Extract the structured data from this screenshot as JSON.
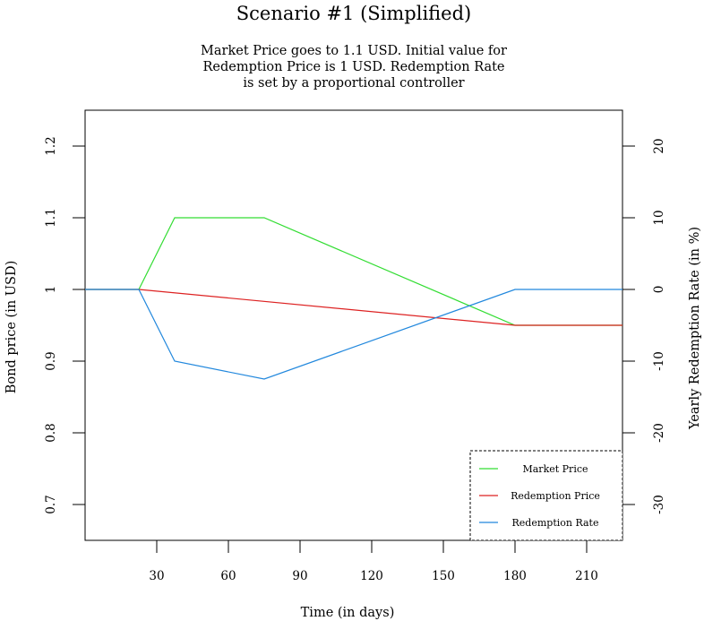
{
  "chart_data": {
    "type": "line",
    "title": "Scenario #1 (Simplified)",
    "subtitle": [
      "Market Price goes to 1.1 USD. Initial value for",
      "Redemption Price is 1 USD. Redemption Rate",
      "is set by a proportional controller"
    ],
    "xlabel": "Time (in days)",
    "ylabel": "Bond price (in USD)",
    "y2label": "Yearly Redemption Rate (in %)",
    "xlim": [
      0,
      225
    ],
    "ylim": [
      0.65,
      1.25
    ],
    "y2lim": [
      -35,
      25
    ],
    "xticks": [
      30,
      60,
      90,
      120,
      150,
      180,
      210
    ],
    "xtick_labels": [
      "30",
      "60",
      "90",
      "120",
      "150",
      "180",
      "210"
    ],
    "yticks": [
      0.7,
      0.8,
      0.9,
      1.0,
      1.1,
      1.2
    ],
    "ytick_labels": [
      "0.7",
      "0.8",
      "0.9",
      "1",
      "1.1",
      "1.2"
    ],
    "y2ticks": [
      -30,
      -20,
      -10,
      0,
      10,
      20
    ],
    "y2tick_labels": [
      "-30",
      "-20",
      "-10",
      "0",
      "10",
      "20"
    ],
    "grid": false,
    "legend_position": "bottom-right",
    "series": [
      {
        "name": "Market Price",
        "axis": "left",
        "color": "#33dd33",
        "x": [
          0,
          22.5,
          37.5,
          75,
          180,
          225
        ],
        "y": [
          1.0,
          1.0,
          1.1,
          1.1,
          0.95,
          0.95
        ]
      },
      {
        "name": "Redemption Price",
        "axis": "left",
        "color": "#dd2222",
        "x": [
          0,
          22.5,
          180,
          225
        ],
        "y": [
          1.0,
          1.0,
          0.95,
          0.95
        ]
      },
      {
        "name": "Redemption Rate",
        "axis": "right",
        "color": "#2288dd",
        "x": [
          0,
          22.5,
          37.5,
          75,
          180,
          225
        ],
        "y": [
          0,
          0,
          -10,
          -12.5,
          0,
          0
        ]
      }
    ]
  }
}
